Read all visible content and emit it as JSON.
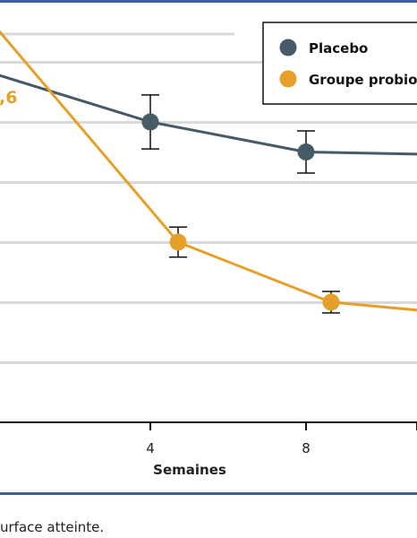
{
  "chart_data": {
    "type": "line",
    "title": "",
    "xlabel": "Semaines",
    "ylabel": "",
    "x_ticks": [
      4,
      8
    ],
    "x": [
      0,
      4,
      8,
      12
    ],
    "ylim": [
      0,
      7.5
    ],
    "grid": true,
    "legend_position": "top-right",
    "annotation": ",6",
    "series": [
      {
        "name": "Placebo",
        "color": "#465a67",
        "values": [
          5.8,
          5.0,
          4.5,
          4.45
        ],
        "error": [
          null,
          0.45,
          0.35,
          0.45
        ]
      },
      {
        "name": "Groupe probiotique",
        "color": "#e6a02a",
        "values": [
          6.6,
          3.0,
          2.0,
          1.8
        ],
        "error": [
          null,
          0.25,
          0.18,
          null
        ]
      }
    ]
  },
  "footnote": "urface atteinte.",
  "colors": {
    "frame": "#3b5ea0",
    "grid": "#d9d9d9",
    "axis": "#111111"
  }
}
